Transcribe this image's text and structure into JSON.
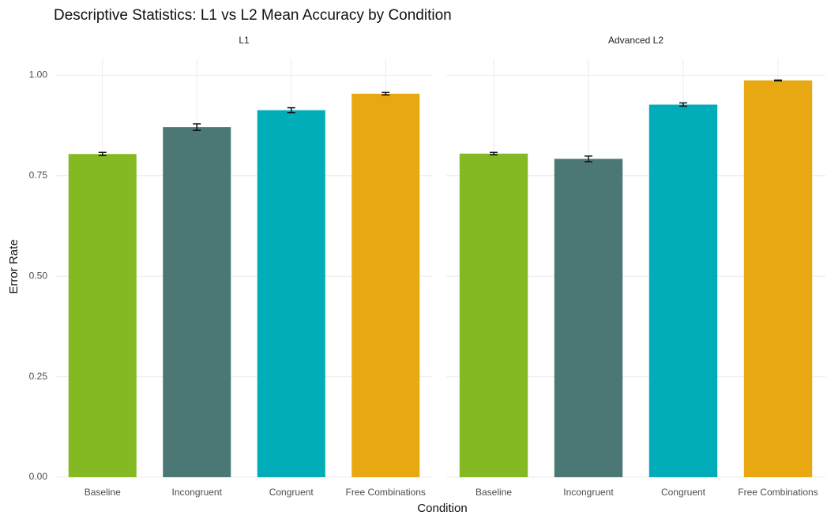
{
  "chart_data": {
    "type": "bar",
    "title": "Descriptive Statistics: L1 vs L2 Mean Accuracy by Condition",
    "x_label": "Condition",
    "y_label": "Error Rate",
    "ylim": [
      0,
      1.04
    ],
    "yticks": [
      {
        "value": 0,
        "label": "0.00"
      },
      {
        "value": 0.25,
        "label": "0.25"
      },
      {
        "value": 0.5,
        "label": "0.50"
      },
      {
        "value": 0.75,
        "label": "0.75"
      },
      {
        "value": 1,
        "label": "1.00"
      }
    ],
    "grid": true,
    "facets": [
      {
        "title": "L1",
        "categories": [
          "Baseline",
          "Incongruent",
          "Congruent",
          "Free Combinations"
        ],
        "values": [
          0.804,
          0.871,
          0.913,
          0.954
        ],
        "errors": [
          0.004,
          0.008,
          0.006,
          0.003
        ],
        "colors": [
          "#84b924",
          "#4b7874",
          "#00adb8",
          "#e8a812"
        ]
      },
      {
        "title": "Advanced L2",
        "categories": [
          "Baseline",
          "Incongruent",
          "Congruent",
          "Free Combinations"
        ],
        "values": [
          0.805,
          0.792,
          0.927,
          0.987
        ],
        "errors": [
          0.003,
          0.007,
          0.004,
          0.001
        ],
        "colors": [
          "#84b924",
          "#4b7874",
          "#00adb8",
          "#e8a812"
        ]
      }
    ]
  }
}
